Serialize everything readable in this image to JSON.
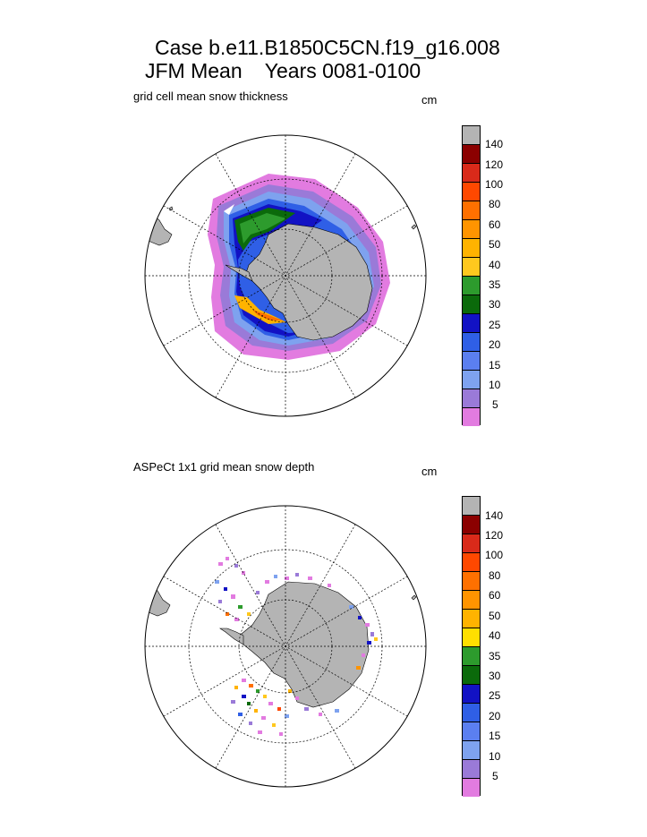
{
  "title_line1": "Case b.e11.B1850C5CN.f19_g16.008",
  "title_line2": "JFM Mean    Years 0081-0100",
  "colors": {
    "land": "#b4b4b4",
    "bins": [
      "#e27be0",
      "#9a7ad8",
      "#7ea2ef",
      "#5b7ff0",
      "#2f5fe6",
      "#1212c4",
      "#0b6a0b",
      "#2d9b2d",
      "#ffc81e",
      "#ffb300",
      "#ff9400",
      "#ff7000",
      "#ff4800",
      "#d92a1a",
      "#8b0000",
      "#b4b4b4"
    ]
  },
  "panels": [
    {
      "title": "grid cell mean snow thickness",
      "units": "cm",
      "colorbar_labels": [
        "5",
        "10",
        "15",
        "20",
        "25",
        "30",
        "35",
        "40",
        "50",
        "60",
        "80",
        "100",
        "120",
        "140"
      ]
    },
    {
      "title": "ASPeCt 1x1 grid mean snow depth",
      "units": "cm",
      "colorbar_labels": [
        "5",
        "10",
        "15",
        "20",
        "25",
        "30",
        "35",
        "40",
        "50",
        "60",
        "80",
        "100",
        "120",
        "140"
      ]
    }
  ]
}
